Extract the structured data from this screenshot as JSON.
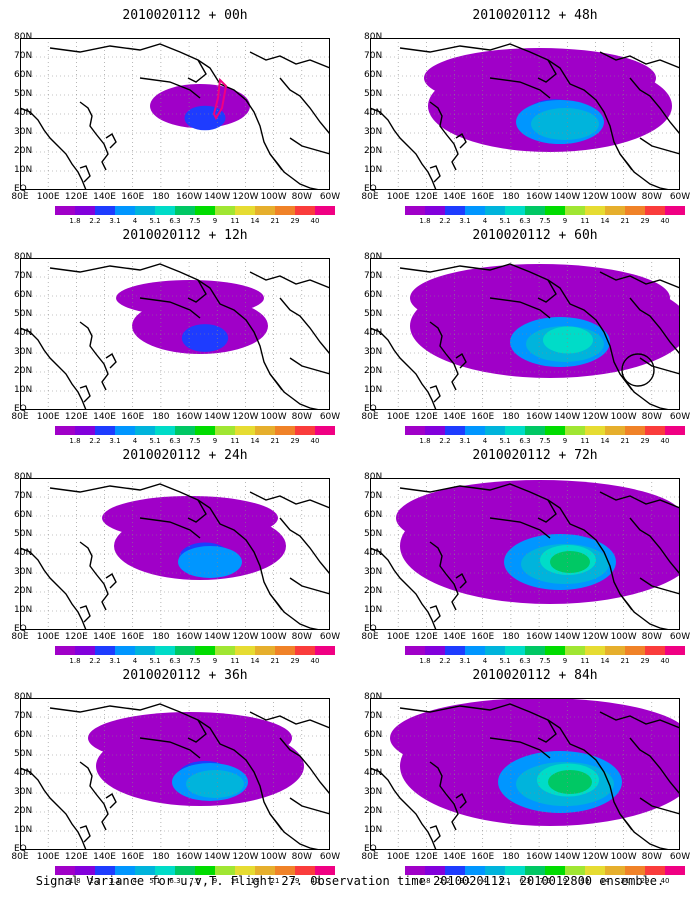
{
  "panels": [
    {
      "title": "2010020112 + 00h",
      "level": 0
    },
    {
      "title": "2010020112 + 12h",
      "level": 1
    },
    {
      "title": "2010020112 + 24h",
      "level": 2
    },
    {
      "title": "2010020112 + 36h",
      "level": 3
    },
    {
      "title": "2010020112 + 48h",
      "level": 4
    },
    {
      "title": "2010020112 + 60h",
      "level": 5
    },
    {
      "title": "2010020112 + 72h",
      "level": 6
    },
    {
      "title": "2010020112 + 84h",
      "level": 7
    }
  ],
  "lon_labels": [
    "80E",
    "100E",
    "120E",
    "140E",
    "160E",
    "180",
    "160W",
    "140W",
    "120W",
    "100W",
    "80W",
    "60W"
  ],
  "lat_labels": [
    "80N",
    "70N",
    "60N",
    "50N",
    "40N",
    "30N",
    "20N",
    "10N",
    "EQ"
  ],
  "colorbar": {
    "labels": [
      "1.8",
      "2.2",
      "3.1",
      "4",
      "5.1",
      "6.3",
      "7.5",
      "9",
      "11",
      "14",
      "21",
      "29",
      "40"
    ],
    "colors": [
      "#a000c8",
      "#8200dc",
      "#1e3cff",
      "#0096ff",
      "#00b4dc",
      "#00dcc8",
      "#00c864",
      "#00dc00",
      "#a0e632",
      "#e6dc32",
      "#e6af2d",
      "#f08228",
      "#fa3c3c",
      "#f00082"
    ]
  },
  "caption": "Signal Variance for u,v,T. Flight 27. Observation time 2010020112. 2010012800 ensemble."
}
